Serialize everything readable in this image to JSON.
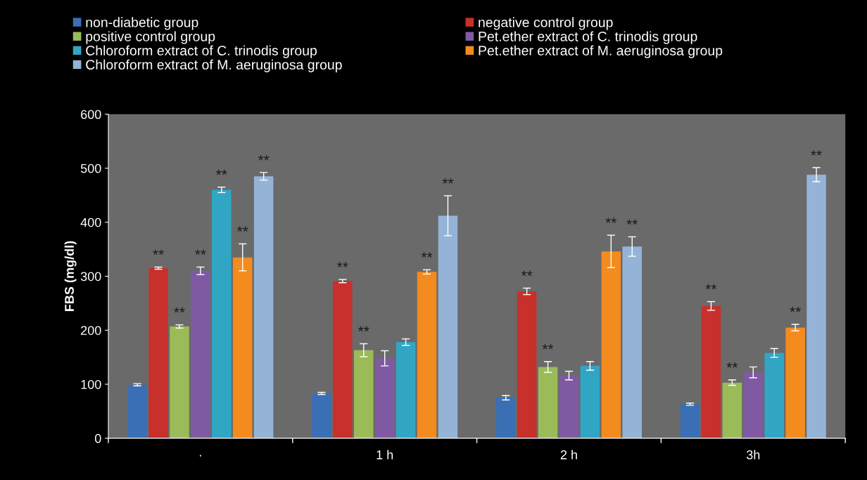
{
  "chart_data": {
    "type": "bar",
    "ylabel": "FBS (mg/dl)",
    "categories": [
      "·",
      "1 h",
      "2 h",
      "3h"
    ],
    "ylim": [
      0,
      600
    ],
    "yticks": [
      0,
      100,
      200,
      300,
      400,
      500,
      600
    ],
    "grid": false,
    "legend": "top",
    "series": [
      {
        "name": "non-diabetic group",
        "color": "#3a6fb5",
        "values": [
          99,
          83,
          75,
          63
        ],
        "errors": [
          2,
          2,
          4,
          2
        ],
        "value_labels": [
          null,
          null,
          null,
          null
        ]
      },
      {
        "name": "negative control group",
        "color": "#c8302c",
        "values": [
          315,
          291,
          272,
          245
        ],
        "errors": [
          2,
          3,
          6,
          8
        ],
        "value_labels": [
          "**",
          "**",
          "**",
          "**"
        ]
      },
      {
        "name": "positive control group",
        "color": "#9bbb59",
        "values": [
          207,
          163,
          132,
          103
        ],
        "errors": [
          3,
          12,
          10,
          5
        ],
        "value_labels": [
          "**",
          "**",
          "**",
          "**"
        ]
      },
      {
        "name": "Pet.ether extract of C. trinodis group",
        "color": "#7f5aa2",
        "values": [
          310,
          148,
          116,
          122
        ],
        "errors": [
          7,
          14,
          8,
          10
        ],
        "value_labels": [
          "**",
          null,
          null,
          null
        ]
      },
      {
        "name": "Chloroform extract of C. trinodis group",
        "color": "#31a6c4",
        "values": [
          460,
          178,
          134,
          158
        ],
        "errors": [
          5,
          6,
          8,
          8
        ],
        "value_labels": [
          "**",
          null,
          null,
          null
        ]
      },
      {
        "name": "Pet.ether extract of M. aeruginosa group",
        "color": "#f38b1e",
        "values": [
          335,
          308,
          346,
          205
        ],
        "errors": [
          25,
          4,
          30,
          6
        ],
        "value_labels": [
          "**",
          "**",
          "**",
          "**"
        ]
      },
      {
        "name": "Chloroform extract of M. aeruginosa group",
        "color": "#95b3d7",
        "values": [
          485,
          412,
          355,
          488
        ],
        "errors": [
          7,
          37,
          18,
          13
        ],
        "value_labels": [
          "**",
          "**",
          "**",
          "**"
        ]
      }
    ]
  }
}
